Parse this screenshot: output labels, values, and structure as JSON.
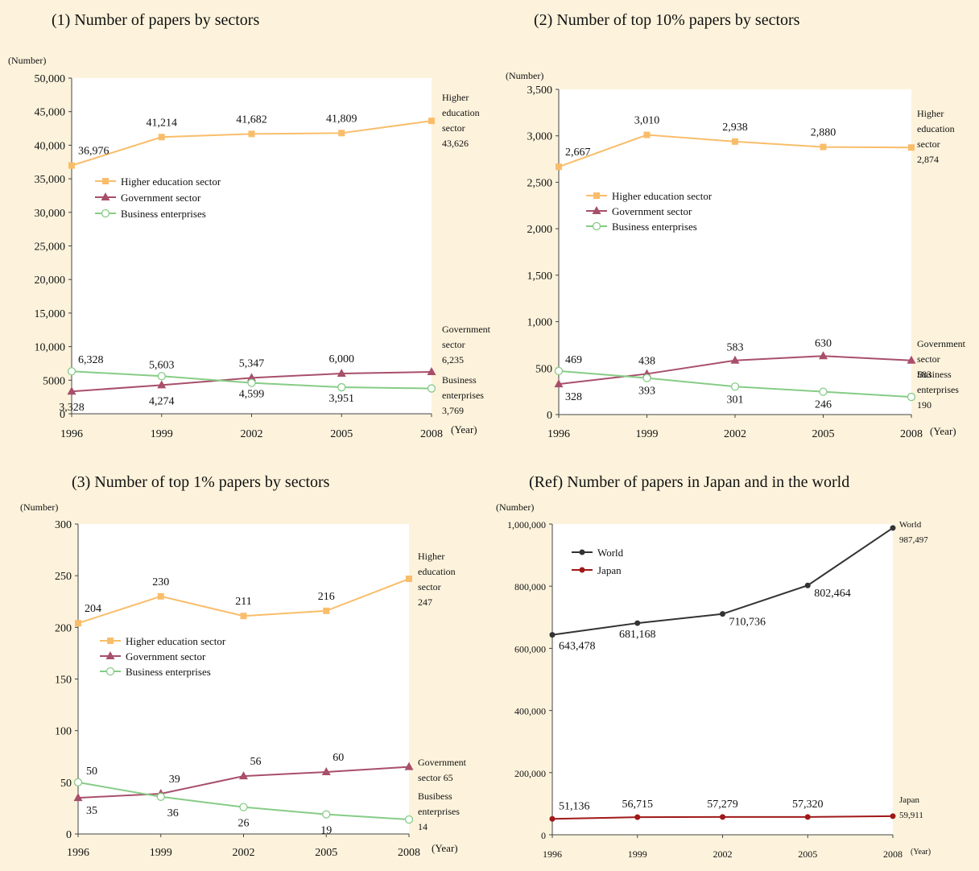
{
  "colors": {
    "background": "#fdf3dc",
    "plot_area": "#ffffff",
    "higher_education": "#f9bd6a",
    "government": "#a84f6a",
    "business": "#86cc86",
    "world": "#333333",
    "japan": "#a01818"
  },
  "chart_data": [
    {
      "type": "line",
      "title": "(1) Number of papers by sectors",
      "ylabel": "(Number)",
      "xlabel": "(Year)",
      "categories": [
        "1996",
        "1999",
        "2002",
        "2005",
        "2008"
      ],
      "ylim": [
        0,
        50000
      ],
      "yticks": [
        "0",
        "5000",
        "10,000",
        "15,000",
        "20,000",
        "25,000",
        "30,000",
        "35,000",
        "40,000",
        "45,000",
        "50,000"
      ],
      "series": [
        {
          "name": "Higher education sector",
          "values": [
            36976,
            41214,
            41682,
            41809,
            43626
          ],
          "labels": [
            "36,976",
            "41,214",
            "41,682",
            "41,809",
            "43,626"
          ],
          "marker": "square",
          "end_label": [
            "Higher",
            "education",
            "sector",
            "43,626"
          ]
        },
        {
          "name": "Government sector",
          "values": [
            3328,
            4274,
            5347,
            6000,
            6235
          ],
          "labels": [
            "3,328",
            "4,274",
            "5,347",
            "6,000",
            "6,235"
          ],
          "marker": "triangle",
          "end_label": [
            "Government",
            "sector",
            "6,235"
          ]
        },
        {
          "name": "Business enterprises",
          "values": [
            6328,
            5603,
            4599,
            3951,
            3769
          ],
          "labels": [
            "6,328",
            "5,603",
            "4,599",
            "3,951",
            "3,769"
          ],
          "marker": "circle",
          "end_label": [
            "Business",
            "enterprises",
            "3,769"
          ]
        }
      ]
    },
    {
      "type": "line",
      "title": "(2) Number of top 10% papers by sectors",
      "ylabel": "(Number)",
      "xlabel": "(Year)",
      "categories": [
        "1996",
        "1999",
        "2002",
        "2005",
        "2008"
      ],
      "ylim": [
        0,
        3500
      ],
      "yticks": [
        "0",
        "500",
        "1,000",
        "1,500",
        "2,000",
        "2,500",
        "3,000",
        "3,500"
      ],
      "series": [
        {
          "name": "Higher education sector",
          "values": [
            2667,
            3010,
            2938,
            2880,
            2874
          ],
          "labels": [
            "2,667",
            "3,010",
            "2,938",
            "2,880",
            "2,874"
          ],
          "marker": "square",
          "end_label": [
            "Higher",
            "education",
            "sector",
            "2,874"
          ]
        },
        {
          "name": "Government sector",
          "values": [
            328,
            438,
            583,
            630,
            583
          ],
          "labels": [
            "328",
            "438",
            "583",
            "630",
            "583"
          ],
          "marker": "triangle",
          "end_label": [
            "Government",
            "sector",
            "583"
          ]
        },
        {
          "name": "Business enterprises",
          "values": [
            469,
            393,
            301,
            246,
            190
          ],
          "labels": [
            "469",
            "393",
            "301",
            "246",
            "190"
          ],
          "marker": "circle",
          "end_label": [
            "Business",
            "enterprises",
            "190"
          ]
        }
      ]
    },
    {
      "type": "line",
      "title": "(3) Number of top 1% papers by sectors",
      "ylabel": "(Number)",
      "xlabel": "(Year)",
      "categories": [
        "1996",
        "1999",
        "2002",
        "2005",
        "2008"
      ],
      "ylim": [
        0,
        300
      ],
      "yticks": [
        "0",
        "50",
        "100",
        "150",
        "200",
        "250",
        "300"
      ],
      "series": [
        {
          "name": "Higher education sector",
          "values": [
            204,
            230,
            211,
            216,
            247
          ],
          "labels": [
            "204",
            "230",
            "211",
            "216",
            "247"
          ],
          "marker": "square",
          "end_label": [
            "Higher",
            "education",
            "sector",
            "247"
          ]
        },
        {
          "name": "Government sector",
          "values": [
            35,
            39,
            56,
            60,
            65
          ],
          "labels": [
            "35",
            "39",
            "56",
            "60",
            "65"
          ],
          "marker": "triangle",
          "end_label": [
            "Government",
            "sector  65"
          ]
        },
        {
          "name": "Business enterprises",
          "values": [
            50,
            36,
            26,
            19,
            14
          ],
          "labels": [
            "50",
            "36",
            "26",
            "19",
            "14"
          ],
          "marker": "circle",
          "end_label": [
            "Busibess",
            "enterprises",
            "14"
          ]
        }
      ]
    },
    {
      "type": "line",
      "title": "(Ref) Number of papers in Japan and in the world",
      "ylabel": "(Number)",
      "xlabel": "(Year)",
      "categories": [
        "1996",
        "1999",
        "2002",
        "2005",
        "2008"
      ],
      "ylim": [
        0,
        1000000
      ],
      "yticks": [
        "0",
        "200,000",
        "400,000",
        "600,000",
        "800,000",
        "1,000,000"
      ],
      "series": [
        {
          "name": "World",
          "values": [
            643478,
            681168,
            710736,
            802464,
            987497
          ],
          "labels": [
            "643,478",
            "681,168",
            "710,736",
            "802,464",
            "987,497"
          ],
          "marker": "dot",
          "end_label": [
            "World",
            "987,497"
          ]
        },
        {
          "name": "Japan",
          "values": [
            51136,
            56715,
            57279,
            57320,
            59911
          ],
          "labels": [
            "51,136",
            "56,715",
            "57,279",
            "57,320",
            "59,911"
          ],
          "marker": "dot",
          "end_label": [
            "Japan",
            "59,911"
          ]
        }
      ]
    }
  ]
}
